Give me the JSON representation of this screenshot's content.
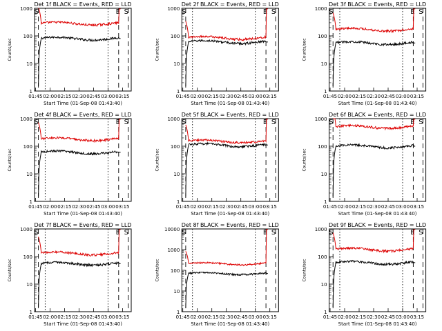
{
  "colors": {
    "events": "#000000",
    "lld": "#dd0000",
    "axis": "#000000",
    "background": "#ffffff"
  },
  "chart_data": [
    {
      "type": "line",
      "title": "Det 1f BLACK = Events, RED = LLD",
      "ylabel": "Counts/sec",
      "xlabel": "Start Time (01-Sep-08 01:43:40)",
      "x_ticks": [
        "01:45",
        "02:00",
        "02:15",
        "02:30",
        "02:45",
        "03:00",
        "03:15"
      ],
      "y_ticks": [
        "1",
        "10",
        "100",
        "1000"
      ],
      "ylim": [
        1,
        1000
      ],
      "y_scale": "log",
      "markers": [
        "S",
        "E",
        "S"
      ],
      "series": [
        {
          "level": 80
        },
        {
          "level": 280
        }
      ]
    },
    {
      "type": "line",
      "title": "Det 2f BLACK = Events, RED = LLD",
      "ylabel": "Counts/sec",
      "xlabel": "Start Time (01-Sep-08 01:43:40)",
      "x_ticks": [
        "01:45",
        "02:00",
        "02:15",
        "02:30",
        "02:45",
        "03:00",
        "03:15"
      ],
      "y_ticks": [
        "1",
        "10",
        "100",
        "1000"
      ],
      "ylim": [
        1,
        1000
      ],
      "y_scale": "log",
      "markers": [
        "S",
        "E",
        "S"
      ],
      "series": [
        {
          "level": 60
        },
        {
          "level": 85
        }
      ]
    },
    {
      "type": "line",
      "title": "Det 3f BLACK = Events, RED = LLD",
      "ylabel": "Counts/sec",
      "xlabel": "Start Time (01-Sep-08 01:43:40)",
      "x_ticks": [
        "01:45",
        "02:00",
        "02:15",
        "02:30",
        "02:45",
        "03:00",
        "03:15"
      ],
      "y_ticks": [
        "1",
        "10",
        "100",
        "1000"
      ],
      "ylim": [
        1,
        1000
      ],
      "y_scale": "log",
      "markers": [
        "S",
        "E",
        "S"
      ],
      "series": [
        {
          "level": 55
        },
        {
          "level": 170
        }
      ]
    },
    {
      "type": "line",
      "title": "Det 4f BLACK = Events, RED = LLD",
      "ylabel": "Counts/sec",
      "xlabel": "Start Time (01-Sep-08 01:43:40)",
      "x_ticks": [
        "01:45",
        "02:00",
        "02:15",
        "02:30",
        "02:45",
        "03:00",
        "03:15"
      ],
      "y_ticks": [
        "1",
        "10",
        "100",
        "1000"
      ],
      "ylim": [
        1,
        1000
      ],
      "y_scale": "log",
      "markers": [
        "S",
        "E",
        "S"
      ],
      "series": [
        {
          "level": 60
        },
        {
          "level": 180
        }
      ]
    },
    {
      "type": "line",
      "title": "Det 5f BLACK = Events, RED = LLD",
      "ylabel": "Counts/sec",
      "xlabel": "Start Time (01-Sep-08 01:43:40)",
      "x_ticks": [
        "01:45",
        "02:00",
        "02:15",
        "02:30",
        "02:45",
        "03:00",
        "03:15"
      ],
      "y_ticks": [
        "1",
        "10",
        "100",
        "1000"
      ],
      "ylim": [
        1,
        1000
      ],
      "y_scale": "log",
      "markers": [
        "S",
        "E",
        "S"
      ],
      "series": [
        {
          "level": 110
        },
        {
          "level": 150
        }
      ]
    },
    {
      "type": "line",
      "title": "Det 6f BLACK = Events, RED = LLD",
      "ylabel": "Counts/sec",
      "xlabel": "Start Time (01-Sep-08 01:43:40)",
      "x_ticks": [
        "01:45",
        "02:00",
        "02:15",
        "02:30",
        "02:45",
        "03:00",
        "03:15"
      ],
      "y_ticks": [
        "1",
        "10",
        "100",
        "1000"
      ],
      "ylim": [
        1,
        1000
      ],
      "y_scale": "log",
      "markers": [
        "S",
        "E",
        "S"
      ],
      "series": [
        {
          "level": 100
        },
        {
          "level": 500
        }
      ]
    },
    {
      "type": "line",
      "title": "Det 7f BLACK = Events, RED = LLD",
      "ylabel": "Counts/sec",
      "xlabel": "Start Time (01-Sep-08 01:43:40)",
      "x_ticks": [
        "01:45",
        "02:00",
        "02:15",
        "02:30",
        "02:45",
        "03:00",
        "03:15"
      ],
      "y_ticks": [
        "1",
        "10",
        "100",
        "1000"
      ],
      "ylim": [
        1,
        1000
      ],
      "y_scale": "log",
      "markers": [
        "S",
        "E",
        "S"
      ],
      "series": [
        {
          "level": 55
        },
        {
          "level": 130
        }
      ]
    },
    {
      "type": "line",
      "title": "Det 8f BLACK = Events, RED = LLD",
      "ylabel": "Counts/sec",
      "xlabel": "Start Time (01-Sep-08 01:43:40)",
      "x_ticks": [
        "01:45",
        "02:00",
        "02:15",
        "02:30",
        "02:45",
        "03:00",
        "03:15"
      ],
      "y_ticks": [
        "1",
        "10",
        "100",
        "1000",
        "10000"
      ],
      "ylim": [
        1,
        10000
      ],
      "y_scale": "log",
      "markers": [
        "S",
        "E",
        "S"
      ],
      "series": [
        {
          "level": 70
        },
        {
          "level": 210
        }
      ]
    },
    {
      "type": "line",
      "title": "Det 9f BLACK = Events, RED = LLD",
      "ylabel": "Counts/sec",
      "xlabel": "Start Time (01-Sep-08 01:43:40)",
      "x_ticks": [
        "01:45",
        "02:00",
        "02:15",
        "02:30",
        "02:45",
        "03:00",
        "03:15"
      ],
      "y_ticks": [
        "1",
        "10",
        "100",
        "1000"
      ],
      "ylim": [
        1,
        1000
      ],
      "y_scale": "log",
      "markers": [
        "S",
        "E",
        "S"
      ],
      "series": [
        {
          "level": 60
        },
        {
          "level": 180
        }
      ]
    }
  ]
}
